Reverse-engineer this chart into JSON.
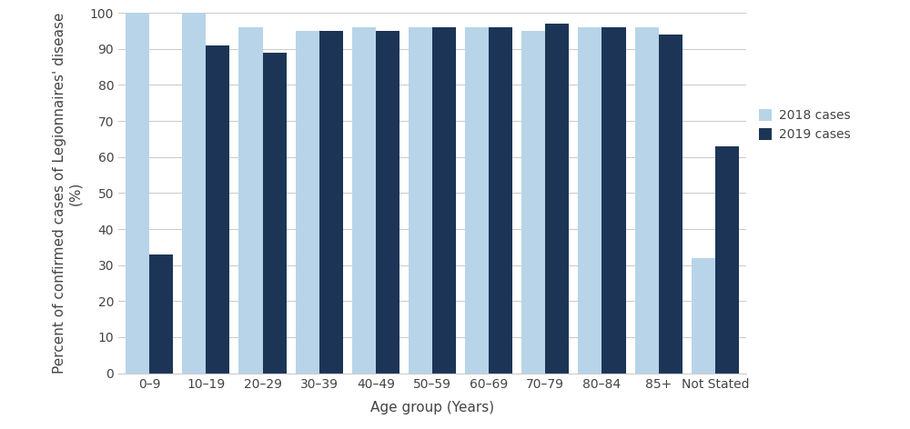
{
  "categories": [
    "0–9",
    "10–19",
    "20–29",
    "30–39",
    "40–49",
    "50–59",
    "60–69",
    "70–79",
    "80–84",
    "85+",
    "Not Stated"
  ],
  "values_2018": [
    100,
    100,
    96,
    95,
    96,
    96,
    96,
    95,
    96,
    96,
    32
  ],
  "values_2019": [
    33,
    91,
    89,
    95,
    95,
    96,
    96,
    97,
    96,
    94,
    63
  ],
  "color_2018": "#b8d4e8",
  "color_2019": "#1c3557",
  "ylabel": "Percent of confirmed cases of Legionnaires' disease\n(%)",
  "xlabel": "Age group (Years)",
  "ylim": [
    0,
    100
  ],
  "yticks": [
    0,
    10,
    20,
    30,
    40,
    50,
    60,
    70,
    80,
    90,
    100
  ],
  "legend_2018": "2018 cases",
  "legend_2019": "2019 cases",
  "bar_width": 0.42,
  "grid_color": "#cccccc",
  "background_color": "#ffffff",
  "tick_fontsize": 10,
  "label_fontsize": 11
}
